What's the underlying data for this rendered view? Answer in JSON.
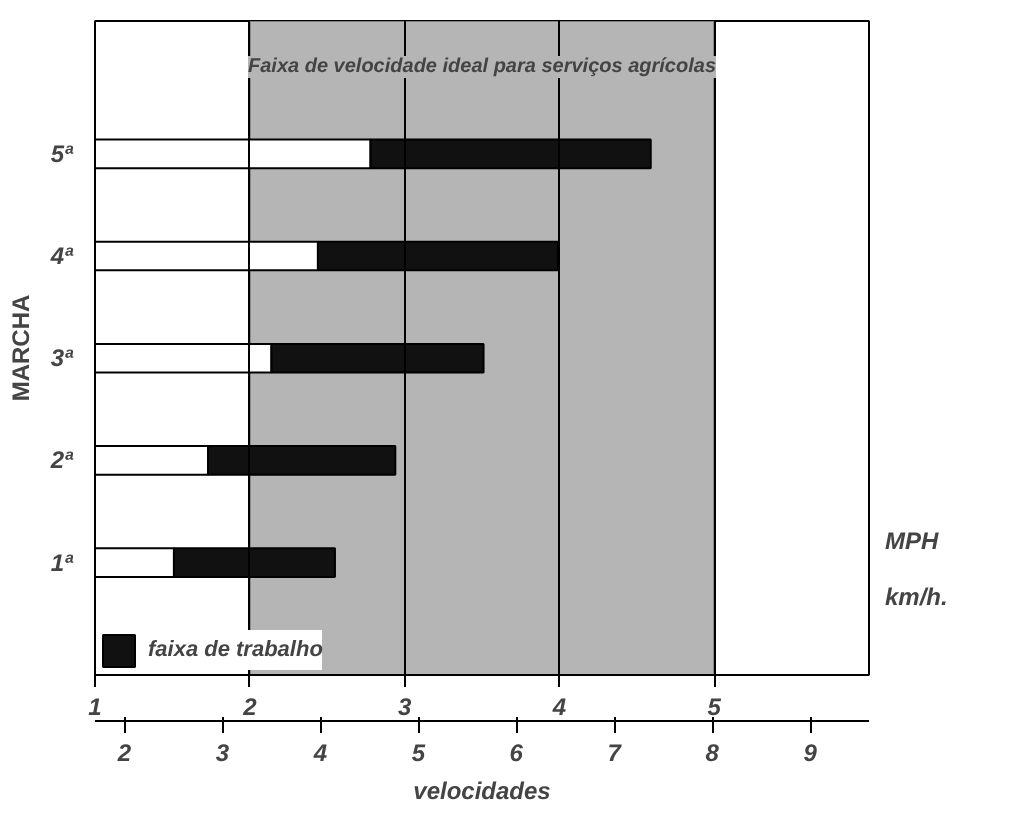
{
  "chart_data": {
    "type": "bar",
    "orientation": "horizontal",
    "categories": [
      "5ª",
      "4ª",
      "3ª",
      "2ª",
      "1ª"
    ],
    "ylabel": "MARCHA",
    "xlabel": "MPH",
    "x2label": "km/h.",
    "annotations": [
      "velocidades"
    ],
    "xlim": [
      1,
      6
    ],
    "xticks": [
      1,
      2,
      3,
      4,
      5
    ],
    "x2lim": [
      1.7,
      9.6
    ],
    "x2ticks": [
      2,
      3,
      4,
      5,
      6,
      7,
      8,
      9
    ],
    "series": [
      {
        "color": "#ffffff",
        "base": [
          1,
          1,
          1,
          1,
          1
        ],
        "values": [
          1.78,
          1.44,
          1.14,
          0.73,
          0.51
        ]
      },
      {
        "name": "faixa de trabalho",
        "color": "#111111",
        "base": [
          2.78,
          2.44,
          2.14,
          1.73,
          1.51
        ],
        "values": [
          1.81,
          1.55,
          1.37,
          1.21,
          1.04
        ]
      }
    ],
    "bands": [
      {
        "axis": "x",
        "from": 2,
        "to": 5,
        "label": "Faixa de velocidade ideal para serviços agrícolas",
        "color": "#b5b5b5"
      }
    ],
    "grid": "x",
    "legend": "bottom"
  }
}
